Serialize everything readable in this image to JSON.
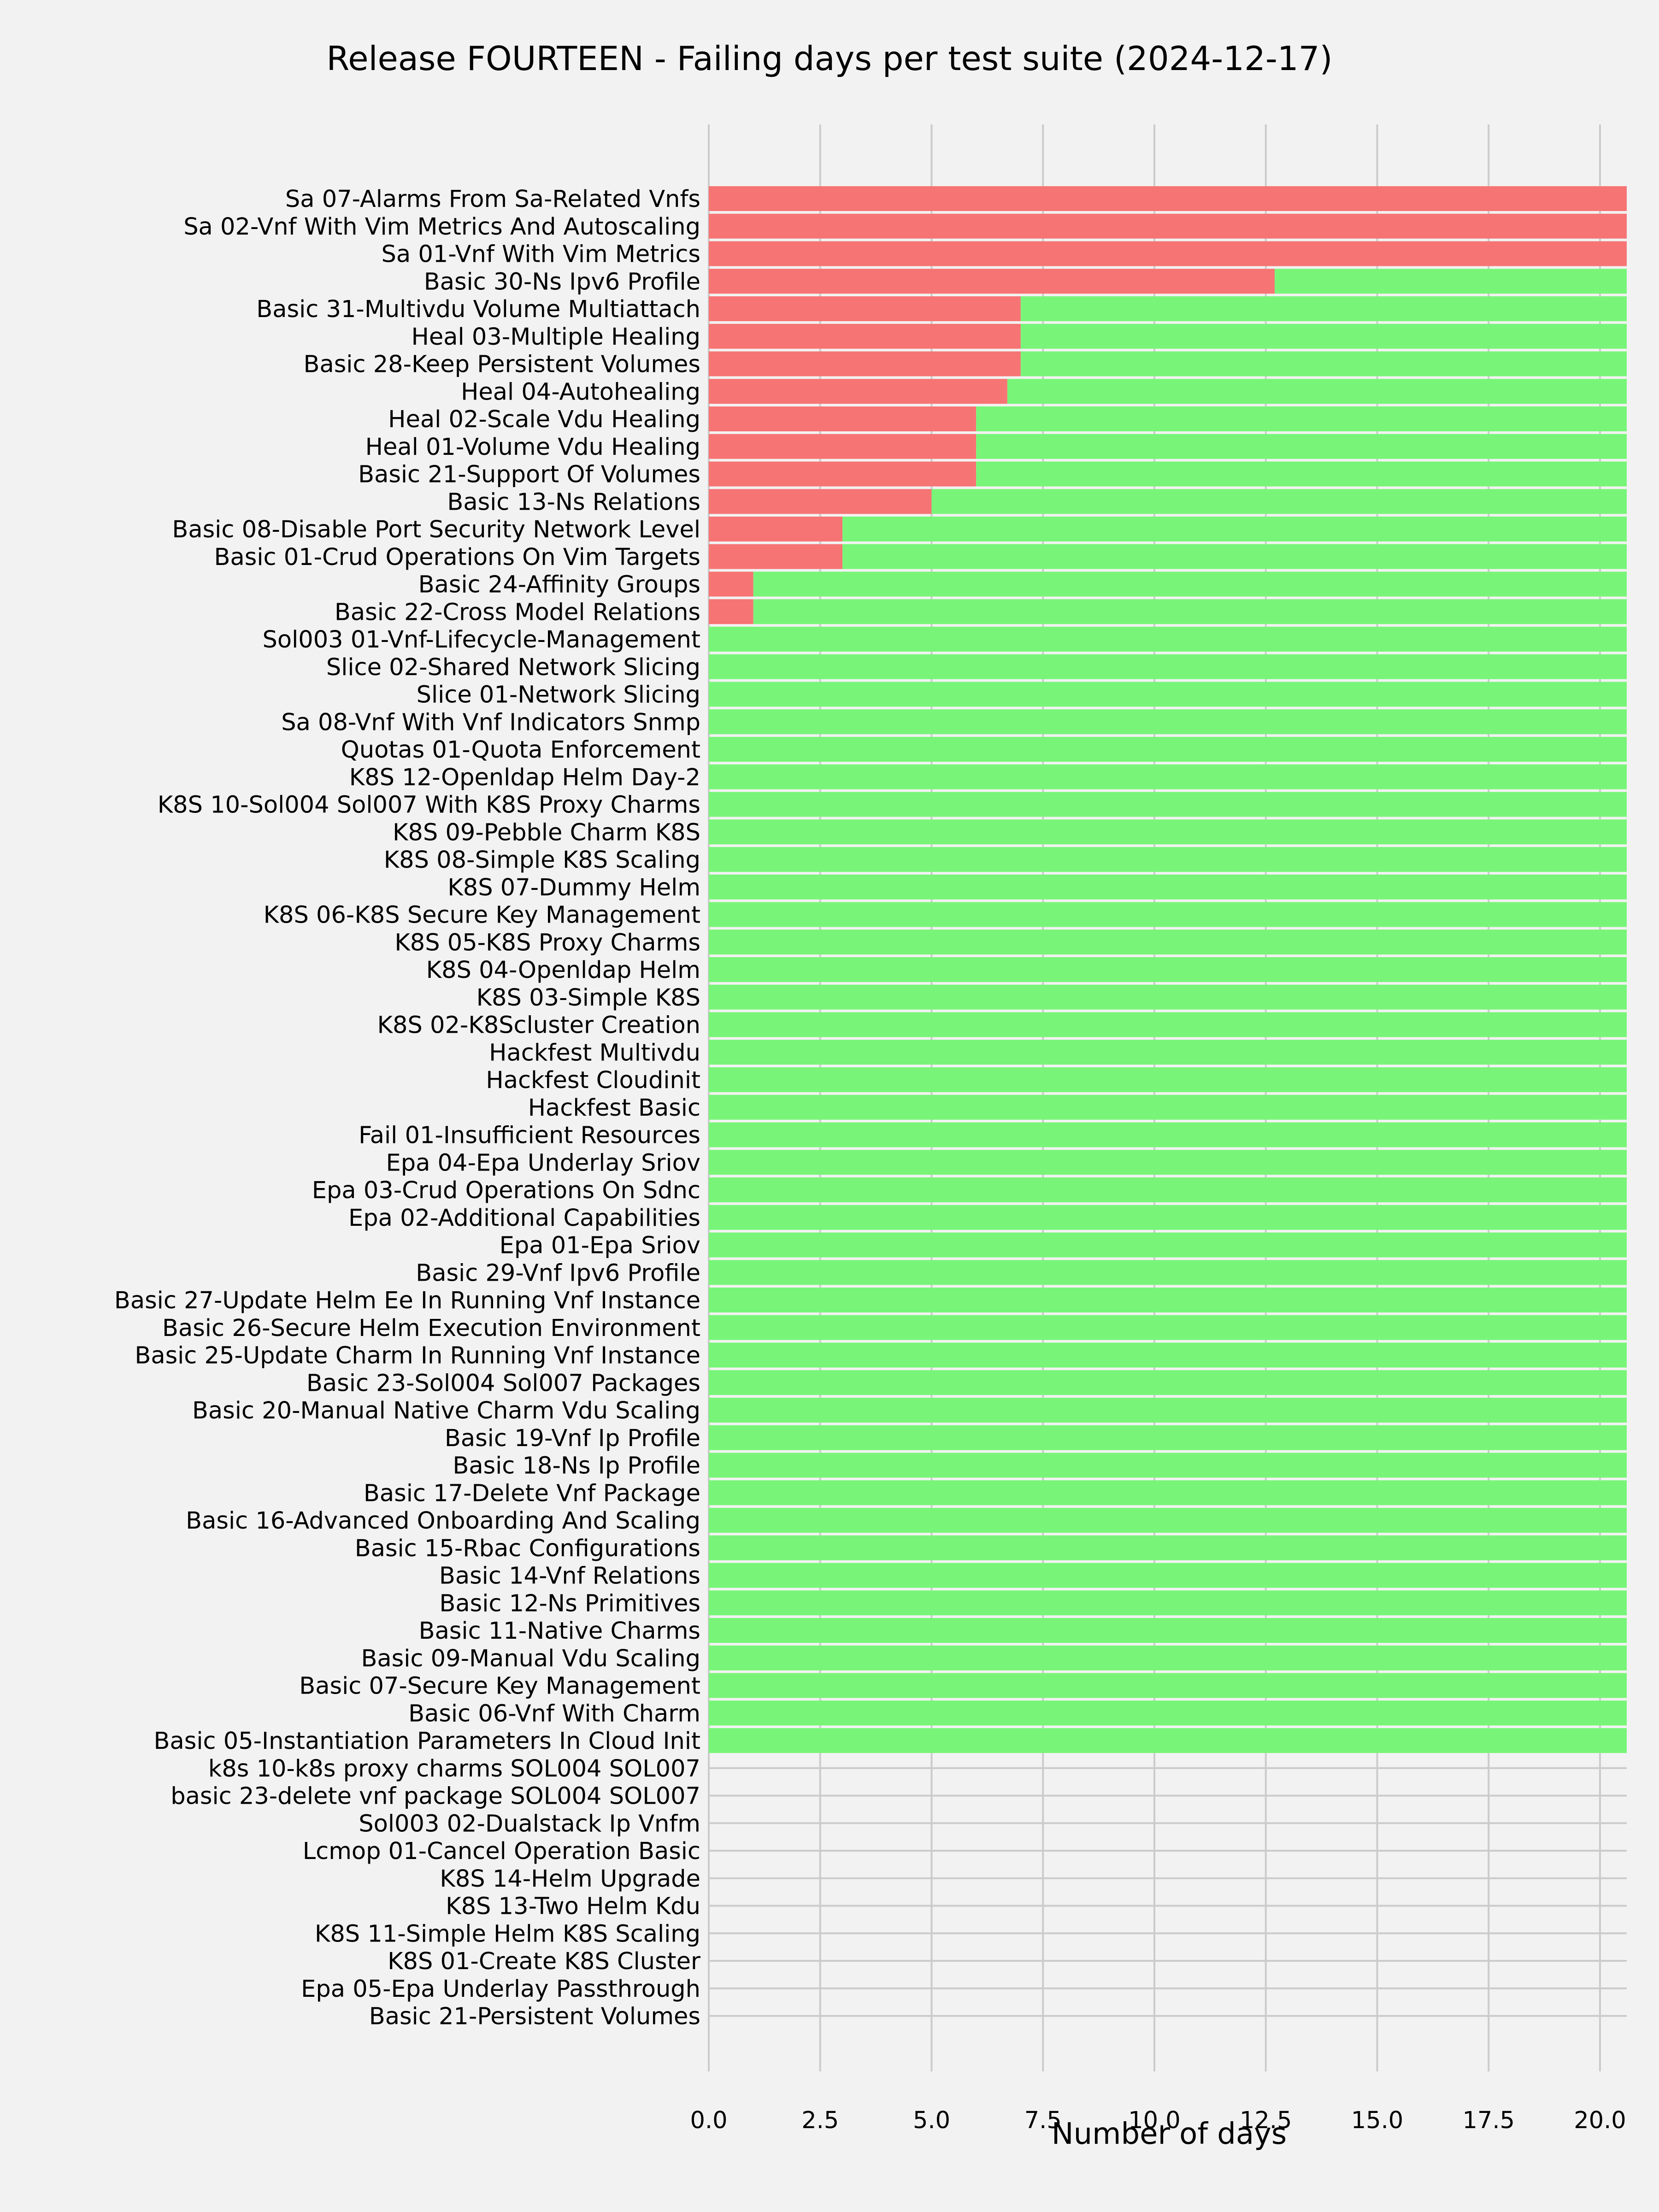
{
  "chart_data": {
    "type": "bar",
    "orientation": "horizontal",
    "stacked": true,
    "title": "Release FOURTEEN - Failing days per test suite (2024-12-17)",
    "xlabel": "Number of days",
    "ylabel": "",
    "xlim": [
      0,
      20.6
    ],
    "xticks": [
      "0.0",
      "2.5",
      "5.0",
      "7.5",
      "10.0",
      "12.5",
      "15.0",
      "17.5",
      "20.0"
    ],
    "grid": true,
    "legend": "none",
    "colors": {
      "failing": "#f77474",
      "passing": "#78f578",
      "background": "#f2f2f2",
      "grid": "#cbcbcb"
    },
    "categories": [
      "Sa 07-Alarms From Sa-Related Vnfs",
      "Sa 02-Vnf With Vim Metrics And Autoscaling",
      "Sa 01-Vnf With Vim Metrics",
      "Basic 30-Ns Ipv6 Profile",
      "Basic 31-Multivdu Volume Multiattach",
      "Heal 03-Multiple Healing",
      "Basic 28-Keep Persistent Volumes",
      "Heal 04-Autohealing",
      "Heal 02-Scale Vdu Healing",
      "Heal 01-Volume Vdu Healing",
      "Basic 21-Support Of Volumes",
      "Basic 13-Ns Relations",
      "Basic 08-Disable Port Security Network Level",
      "Basic 01-Crud Operations On Vim Targets",
      "Basic 24-Affinity Groups",
      "Basic 22-Cross Model Relations",
      "Sol003 01-Vnf-Lifecycle-Management",
      "Slice 02-Shared Network Slicing",
      "Slice 01-Network Slicing",
      "Sa 08-Vnf With Vnf Indicators Snmp",
      "Quotas 01-Quota Enforcement",
      "K8S 12-Openldap Helm Day-2",
      "K8S 10-Sol004 Sol007 With K8S Proxy Charms",
      "K8S 09-Pebble Charm K8S",
      "K8S 08-Simple K8S Scaling",
      "K8S 07-Dummy Helm",
      "K8S 06-K8S Secure Key Management",
      "K8S 05-K8S Proxy Charms",
      "K8S 04-Openldap Helm",
      "K8S 03-Simple K8S",
      "K8S 02-K8Scluster Creation",
      "Hackfest Multivdu",
      "Hackfest Cloudinit",
      "Hackfest Basic",
      "Fail 01-Insufficient Resources",
      "Epa 04-Epa Underlay Sriov",
      "Epa 03-Crud Operations On Sdnc",
      "Epa 02-Additional Capabilities",
      "Epa 01-Epa Sriov",
      "Basic 29-Vnf Ipv6 Profile",
      "Basic 27-Update Helm Ee In Running Vnf Instance",
      "Basic 26-Secure Helm Execution Environment",
      "Basic 25-Update Charm In Running Vnf Instance",
      "Basic 23-Sol004 Sol007 Packages",
      "Basic 20-Manual Native Charm Vdu Scaling",
      "Basic 19-Vnf Ip Profile",
      "Basic 18-Ns Ip Profile",
      "Basic 17-Delete Vnf Package",
      "Basic 16-Advanced Onboarding And Scaling",
      "Basic 15-Rbac Configurations",
      "Basic 14-Vnf Relations",
      "Basic 12-Ns Primitives",
      "Basic 11-Native Charms",
      "Basic 09-Manual Vdu Scaling",
      "Basic 07-Secure Key Management",
      "Basic 06-Vnf With Charm",
      "Basic 05-Instantiation Parameters In Cloud Init",
      "k8s 10-k8s proxy charms SOL004 SOL007",
      "basic 23-delete vnf package SOL004 SOL007",
      "Sol003 02-Dualstack Ip Vnfm",
      "Lcmop 01-Cancel Operation Basic",
      "K8S 14-Helm Upgrade",
      "K8S 13-Two Helm Kdu",
      "K8S 11-Simple Helm K8S Scaling",
      "K8S 01-Create K8S Cluster",
      "Epa 05-Epa Underlay Passthrough",
      "Basic 21-Persistent Volumes"
    ],
    "series": [
      {
        "key": "failing",
        "values": [
          21,
          21,
          21,
          12.7,
          7,
          7,
          7,
          6.7,
          6,
          6,
          6,
          5,
          3,
          3,
          1,
          1,
          0,
          0,
          0,
          0,
          0,
          0,
          0,
          0,
          0,
          0,
          0,
          0,
          0,
          0,
          0,
          0,
          0,
          0,
          0,
          0,
          0,
          0,
          0,
          0,
          0,
          0,
          0,
          0,
          0,
          0,
          0,
          0,
          0,
          0,
          0,
          0,
          0,
          0,
          0,
          0,
          0,
          0,
          0,
          0,
          0,
          0,
          0,
          0,
          0,
          0,
          0
        ]
      },
      {
        "key": "passing",
        "values": [
          0,
          0,
          0,
          8.3,
          14,
          14,
          14,
          14.3,
          15,
          15,
          15,
          16,
          18,
          18,
          20,
          20,
          21,
          21,
          21,
          21,
          21,
          21,
          21,
          21,
          21,
          21,
          21,
          21,
          21,
          21,
          21,
          21,
          21,
          21,
          21,
          21,
          21,
          21,
          21,
          21,
          21,
          21,
          21,
          21,
          21,
          21,
          21,
          21,
          21,
          21,
          21,
          21,
          21,
          21,
          21,
          21,
          21,
          0,
          0,
          0,
          0,
          0,
          0,
          0,
          0,
          0,
          0
        ]
      }
    ]
  }
}
